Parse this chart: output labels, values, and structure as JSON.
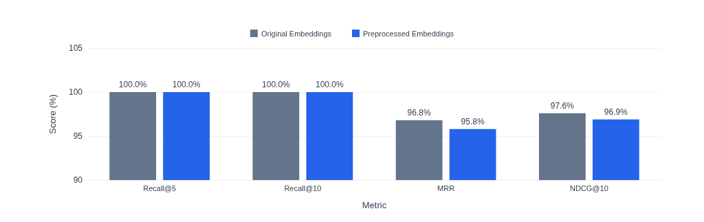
{
  "chart_data": {
    "type": "bar",
    "xlabel": "Metric",
    "ylabel": "Score (%)",
    "categories": [
      "Recall@5",
      "Recall@10",
      "MRR",
      "NDCG@10"
    ],
    "series": [
      {
        "name": "Original Embeddings",
        "color": "#64748b",
        "values": [
          100,
          100,
          96.8,
          97.6
        ],
        "value_labels": [
          "100.0%",
          "100.0%",
          "96.8%",
          "97.6%"
        ]
      },
      {
        "name": "Preprocessed Embeddings",
        "color": "#2563eb",
        "values": [
          100,
          100,
          95.8,
          96.9
        ],
        "value_labels": [
          "100.0%",
          "100.0%",
          "95.8%",
          "96.9%"
        ]
      }
    ],
    "ylim": [
      90,
      105
    ],
    "yticks": [
      90,
      95,
      100,
      105
    ],
    "grid": "y",
    "legend": "top"
  }
}
